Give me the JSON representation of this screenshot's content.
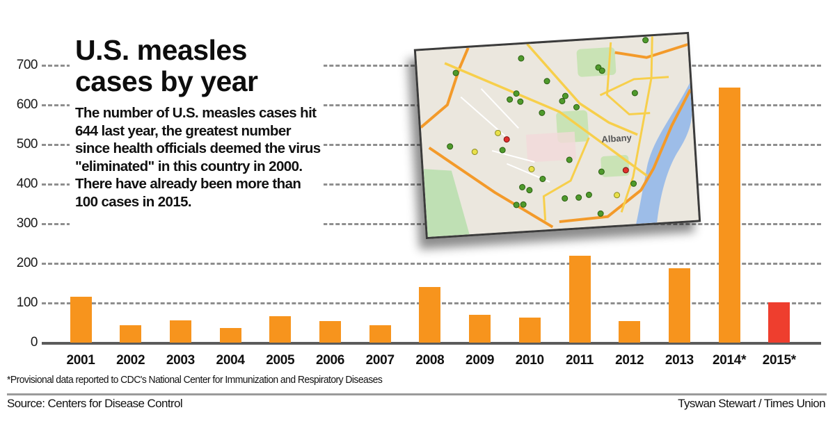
{
  "title": {
    "line1": "U.S. measles",
    "line2": "cases by year"
  },
  "blurb": "The number of U.S. measles cases hit 644 last year, the greatest number since health officials deemed the virus \"eliminated\" in this country in 2000. There have already been more than 100 cases in 2015.",
  "footnote": "*Provisional data reported to CDC's National Center for Immunization and Respiratory Diseases",
  "source": "Source: Centers for Disease Control",
  "credit": "Tyswan Stewart / Times Union",
  "colors": {
    "bar": "#f7941d",
    "bar_provisional_2015": "#ee3e2e",
    "gridline": "#8e8e8e",
    "baseline": "#5b5b5b"
  },
  "map_inset": {
    "description": "Street map of Albany, NY with case location markers",
    "label": "Albany"
  },
  "chart_data": {
    "type": "bar",
    "title": "U.S. measles cases by year",
    "xlabel": "",
    "ylabel": "",
    "ylim": [
      0,
      700
    ],
    "yticks": [
      0,
      100,
      200,
      300,
      400,
      500,
      600,
      700
    ],
    "grid": true,
    "categories": [
      "2001",
      "2002",
      "2003",
      "2004",
      "2005",
      "2006",
      "2007",
      "2008",
      "2009",
      "2010",
      "2011",
      "2012",
      "2013",
      "2014*",
      "2015*"
    ],
    "values": [
      116,
      44,
      56,
      37,
      66,
      55,
      43,
      140,
      71,
      63,
      220,
      55,
      187,
      644,
      102
    ],
    "annotations": [
      "*Provisional data reported to CDC's National Center for Immunization and Respiratory Diseases"
    ],
    "highlight": {
      "category": "2015*",
      "color": "#ee3e2e"
    }
  }
}
